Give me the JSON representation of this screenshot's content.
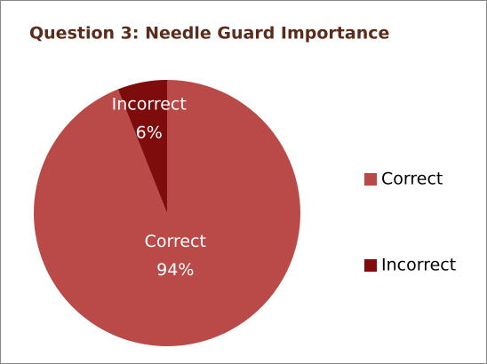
{
  "chart_data": {
    "type": "pie",
    "title": "Question 3: Needle Guard Importance",
    "categories": [
      "Correct",
      "Incorrect"
    ],
    "values": [
      94,
      6
    ],
    "value_labels": [
      "94%",
      "6%"
    ],
    "colors": [
      "#b94a48",
      "#7f0c0c"
    ],
    "legend": "right"
  }
}
